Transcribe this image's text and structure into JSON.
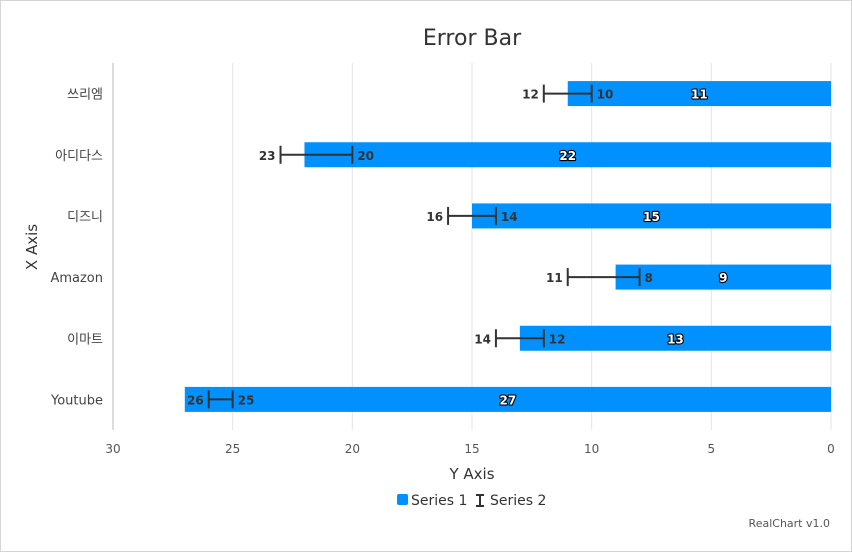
{
  "chart_data": {
    "type": "bar",
    "orientation": "horizontal",
    "title": "Error Bar",
    "xlabel": "X Axis",
    "ylabel": "Y Axis",
    "categories": [
      "쓰리엠",
      "아디다스",
      "디즈니",
      "Amazon",
      "이마트",
      "Youtube"
    ],
    "series": [
      {
        "name": "Series 1",
        "type": "bar",
        "values": [
          11,
          22,
          15,
          9,
          13,
          27
        ],
        "color": "#0091ff"
      },
      {
        "name": "Series 2",
        "type": "errorbar",
        "low": [
          10,
          20,
          14,
          8,
          12,
          25
        ],
        "high": [
          12,
          23,
          16,
          11,
          14,
          26
        ],
        "color": "#333333"
      }
    ],
    "value_axis": {
      "min": 0,
      "max": 30,
      "reversed": true,
      "ticks": [
        "30",
        "25",
        "20",
        "15",
        "10",
        "5",
        "0"
      ]
    },
    "grid": true,
    "legend": "bottom"
  },
  "credit": "RealChart v1.0"
}
